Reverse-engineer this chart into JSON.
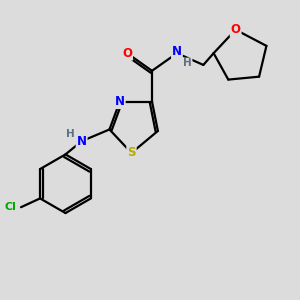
{
  "bg_color": "#dcdcdc",
  "colors": {
    "N": "#0000FF",
    "O": "#FF0000",
    "S": "#BBAA00",
    "Cl": "#00AA00",
    "C": "#000000",
    "H": "#607080"
  }
}
